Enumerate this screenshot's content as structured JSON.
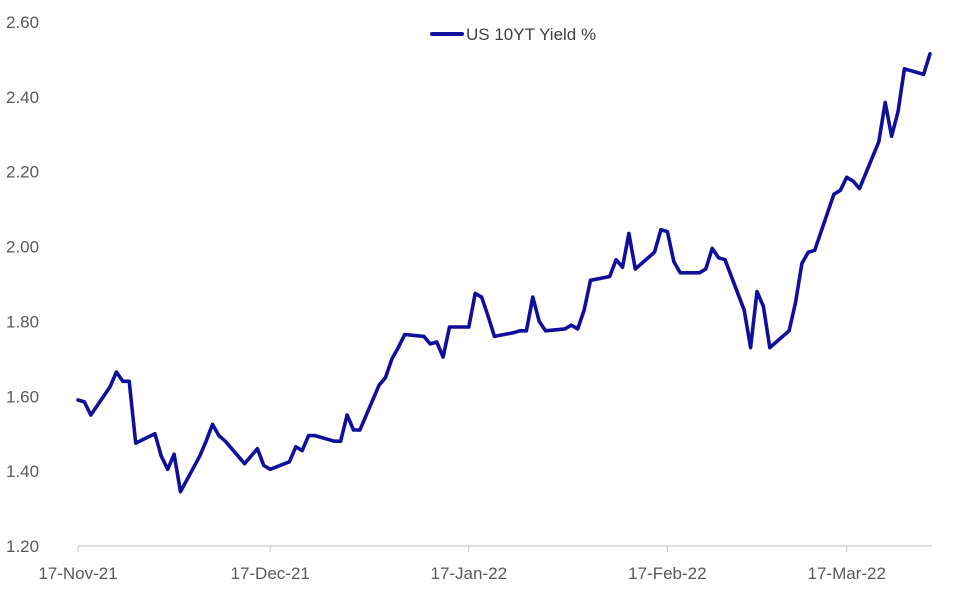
{
  "chart_data": {
    "type": "line",
    "title": "",
    "xlabel": "",
    "ylabel": "",
    "ylim": [
      1.2,
      2.6
    ],
    "y_ticks": [
      "2.60",
      "2.40",
      "2.20",
      "2.00",
      "1.80",
      "1.60",
      "1.40",
      "1.20"
    ],
    "x_range": [
      "2021-11-17",
      "2022-03-30"
    ],
    "x_ticks": [
      {
        "date": "2021-11-17",
        "label": "17-Nov-21"
      },
      {
        "date": "2021-12-17",
        "label": "17-Dec-21"
      },
      {
        "date": "2022-01-17",
        "label": "17-Jan-22"
      },
      {
        "date": "2022-02-17",
        "label": "17-Feb-22"
      },
      {
        "date": "2022-03-17",
        "label": "17-Mar-22"
      }
    ],
    "grid": false,
    "legend_position": "top-center",
    "series": [
      {
        "name": "US 10YT Yield %",
        "color": "#0f0f9c",
        "points": [
          [
            "2021-11-17",
            1.59
          ],
          [
            "2021-11-18",
            1.585
          ],
          [
            "2021-11-19",
            1.55
          ],
          [
            "2021-11-22",
            1.625
          ],
          [
            "2021-11-23",
            1.665
          ],
          [
            "2021-11-24",
            1.64
          ],
          [
            "2021-11-25",
            1.64
          ],
          [
            "2021-11-26",
            1.475
          ],
          [
            "2021-11-29",
            1.5
          ],
          [
            "2021-11-30",
            1.44
          ],
          [
            "2021-12-01",
            1.405
          ],
          [
            "2021-12-02",
            1.445
          ],
          [
            "2021-12-03",
            1.345
          ],
          [
            "2021-12-06",
            1.44
          ],
          [
            "2021-12-07",
            1.48
          ],
          [
            "2021-12-08",
            1.525
          ],
          [
            "2021-12-09",
            1.495
          ],
          [
            "2021-12-10",
            1.48
          ],
          [
            "2021-12-13",
            1.42
          ],
          [
            "2021-12-14",
            1.44
          ],
          [
            "2021-12-15",
            1.46
          ],
          [
            "2021-12-16",
            1.415
          ],
          [
            "2021-12-17",
            1.405
          ],
          [
            "2021-12-20",
            1.425
          ],
          [
            "2021-12-21",
            1.465
          ],
          [
            "2021-12-22",
            1.455
          ],
          [
            "2021-12-23",
            1.495
          ],
          [
            "2021-12-24",
            1.495
          ],
          [
            "2021-12-27",
            1.48
          ],
          [
            "2021-12-28",
            1.48
          ],
          [
            "2021-12-29",
            1.55
          ],
          [
            "2021-12-30",
            1.51
          ],
          [
            "2021-12-31",
            1.51
          ],
          [
            "2022-01-03",
            1.63
          ],
          [
            "2022-01-04",
            1.65
          ],
          [
            "2022-01-05",
            1.7
          ],
          [
            "2022-01-06",
            1.73
          ],
          [
            "2022-01-07",
            1.765
          ],
          [
            "2022-01-10",
            1.76
          ],
          [
            "2022-01-11",
            1.74
          ],
          [
            "2022-01-12",
            1.745
          ],
          [
            "2022-01-13",
            1.705
          ],
          [
            "2022-01-14",
            1.785
          ],
          [
            "2022-01-17",
            1.785
          ],
          [
            "2022-01-18",
            1.875
          ],
          [
            "2022-01-19",
            1.865
          ],
          [
            "2022-01-20",
            1.815
          ],
          [
            "2022-01-21",
            1.76
          ],
          [
            "2022-01-24",
            1.77
          ],
          [
            "2022-01-25",
            1.775
          ],
          [
            "2022-01-26",
            1.775
          ],
          [
            "2022-01-27",
            1.865
          ],
          [
            "2022-01-28",
            1.8
          ],
          [
            "2022-01-29",
            1.775
          ],
          [
            "2022-02-01",
            1.78
          ],
          [
            "2022-02-02",
            1.79
          ],
          [
            "2022-02-03",
            1.78
          ],
          [
            "2022-02-04",
            1.83
          ],
          [
            "2022-02-05",
            1.91
          ],
          [
            "2022-02-08",
            1.92
          ],
          [
            "2022-02-09",
            1.965
          ],
          [
            "2022-02-10",
            1.945
          ],
          [
            "2022-02-11",
            2.035
          ],
          [
            "2022-02-12",
            1.94
          ],
          [
            "2022-02-15",
            1.985
          ],
          [
            "2022-02-16",
            2.045
          ],
          [
            "2022-02-17",
            2.04
          ],
          [
            "2022-02-18",
            1.96
          ],
          [
            "2022-02-19",
            1.93
          ],
          [
            "2022-02-22",
            1.93
          ],
          [
            "2022-02-23",
            1.94
          ],
          [
            "2022-02-24",
            1.995
          ],
          [
            "2022-02-25",
            1.97
          ],
          [
            "2022-02-26",
            1.965
          ],
          [
            "2022-03-01",
            1.83
          ],
          [
            "2022-03-02",
            1.73
          ],
          [
            "2022-03-03",
            1.88
          ],
          [
            "2022-03-04",
            1.84
          ],
          [
            "2022-03-05",
            1.73
          ],
          [
            "2022-03-08",
            1.775
          ],
          [
            "2022-03-09",
            1.85
          ],
          [
            "2022-03-10",
            1.955
          ],
          [
            "2022-03-11",
            1.985
          ],
          [
            "2022-03-12",
            1.99
          ],
          [
            "2022-03-15",
            2.14
          ],
          [
            "2022-03-16",
            2.15
          ],
          [
            "2022-03-17",
            2.185
          ],
          [
            "2022-03-18",
            2.175
          ],
          [
            "2022-03-19",
            2.155
          ],
          [
            "2022-03-22",
            2.28
          ],
          [
            "2022-03-23",
            2.385
          ],
          [
            "2022-03-24",
            2.295
          ],
          [
            "2022-03-25",
            2.36
          ],
          [
            "2022-03-26",
            2.475
          ],
          [
            "2022-03-29",
            2.46
          ],
          [
            "2022-03-30",
            2.515
          ]
        ]
      }
    ]
  }
}
